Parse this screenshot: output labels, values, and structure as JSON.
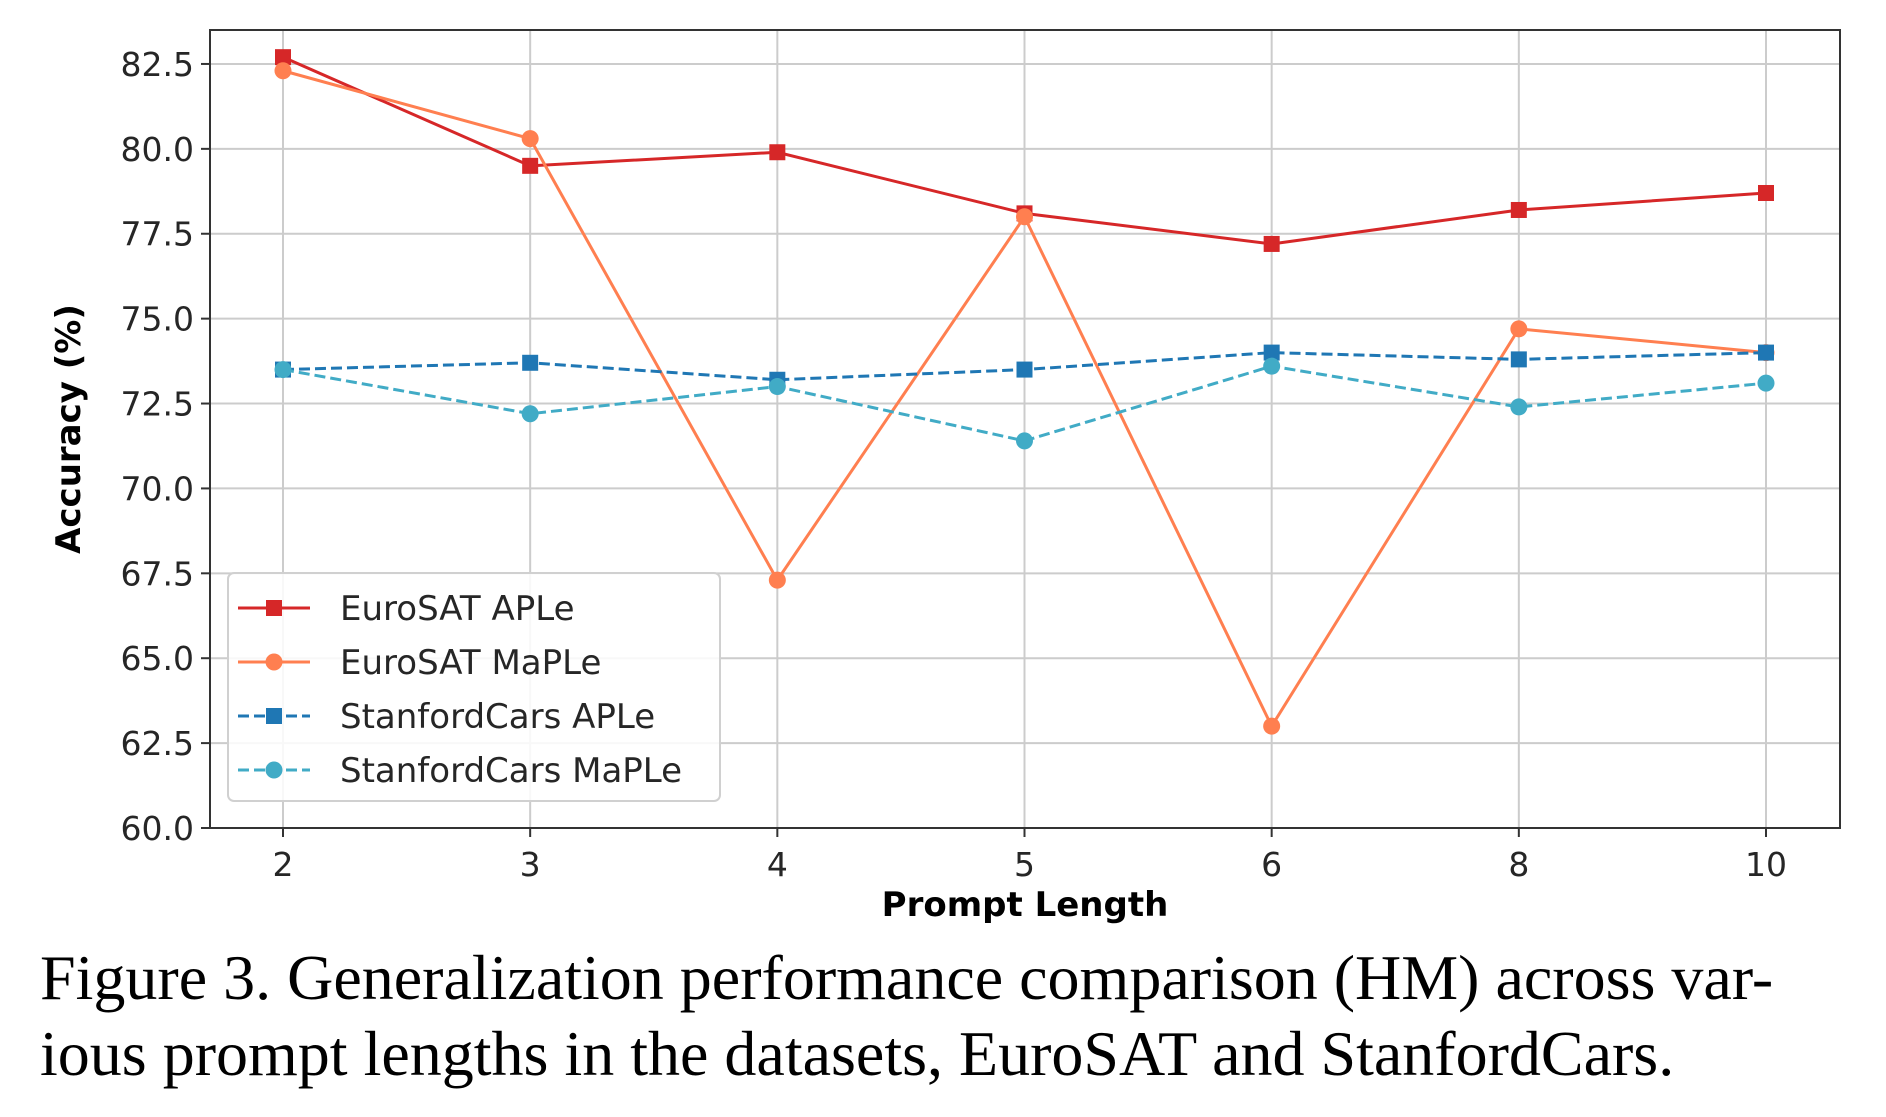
{
  "chart_data": {
    "type": "line",
    "xlabel": "Prompt Length",
    "ylabel": "Accuracy (%)",
    "categories": [
      "2",
      "3",
      "4",
      "5",
      "6",
      "8",
      "10"
    ],
    "ylim": [
      60.0,
      83.5
    ],
    "yticks": [
      "60.0",
      "62.5",
      "65.0",
      "67.5",
      "70.0",
      "72.5",
      "75.0",
      "77.5",
      "80.0",
      "82.5"
    ],
    "grid": true,
    "legend_position": "lower-left",
    "series": [
      {
        "name": "EuroSAT APLe",
        "values": [
          82.7,
          79.5,
          79.9,
          78.1,
          77.2,
          78.2,
          78.7
        ],
        "color": "#d62728",
        "marker": "square",
        "dash": "solid"
      },
      {
        "name": "EuroSAT MaPLe",
        "values": [
          82.3,
          80.3,
          67.3,
          78.0,
          63.0,
          74.7,
          74.0
        ],
        "color": "#ff7f50",
        "marker": "circle",
        "dash": "solid"
      },
      {
        "name": "StanfordCars APLe",
        "values": [
          73.5,
          73.7,
          73.2,
          73.5,
          74.0,
          73.8,
          74.0
        ],
        "color": "#1f77b4",
        "marker": "square",
        "dash": "dashed"
      },
      {
        "name": "StanfordCars MaPLe",
        "values": [
          73.5,
          72.2,
          73.0,
          71.4,
          73.6,
          72.4,
          73.1
        ],
        "color": "#41abc6",
        "marker": "circle",
        "dash": "dashed"
      }
    ]
  },
  "caption": {
    "line1": "Figure 3. Generalization performance comparison (HM) across var-",
    "line2": "ious prompt lengths in the datasets, EuroSAT and StanfordCars."
  }
}
